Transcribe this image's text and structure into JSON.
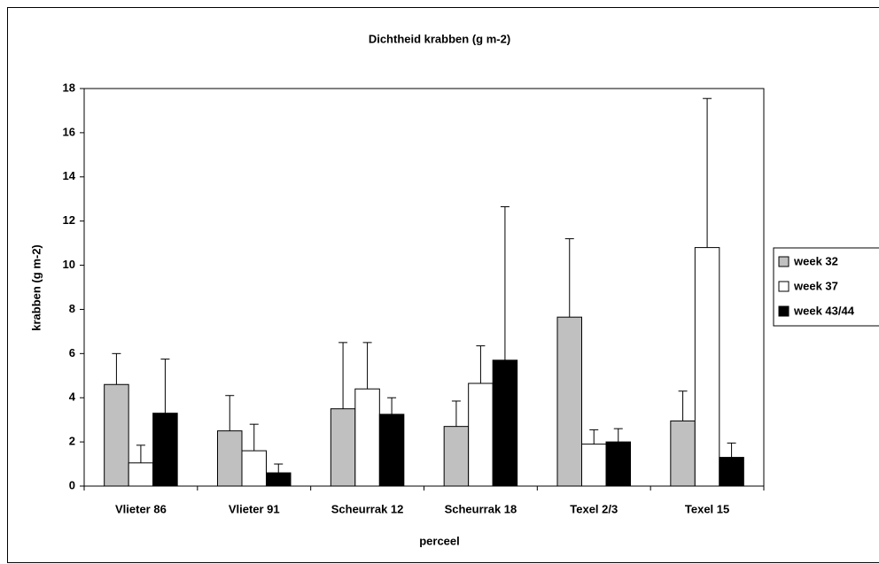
{
  "chart_data": {
    "type": "bar",
    "title": "Dichtheid krabben (g m-2)",
    "x_label": "perceel",
    "y_label": "krabben (g m-2)",
    "categories": [
      "Vlieter 86",
      "Vlieter 91",
      "Scheurrak 12",
      "Scheurrak 18",
      "Texel 2/3",
      "Texel 15"
    ],
    "series": [
      {
        "name": "week 32",
        "color": "#c0c0c0",
        "values": [
          4.6,
          2.5,
          3.5,
          2.7,
          7.65,
          2.95
        ],
        "errors": [
          1.4,
          1.6,
          3.0,
          1.15,
          3.55,
          1.35
        ]
      },
      {
        "name": "week 37",
        "color": "#ffffff",
        "values": [
          1.05,
          1.6,
          4.4,
          4.65,
          1.9,
          10.8
        ],
        "errors": [
          0.8,
          1.2,
          2.1,
          1.7,
          0.65,
          6.75
        ]
      },
      {
        "name": "week 43/44",
        "color": "#000000",
        "values": [
          3.3,
          0.6,
          3.25,
          5.7,
          2.0,
          1.3
        ],
        "errors": [
          2.45,
          0.4,
          0.75,
          6.95,
          0.6,
          0.65
        ]
      }
    ],
    "ylim": [
      0,
      18
    ],
    "yticks": [
      0,
      2,
      4,
      6,
      8,
      10,
      12,
      14,
      16,
      18
    ],
    "grid": false,
    "legend": "right"
  }
}
